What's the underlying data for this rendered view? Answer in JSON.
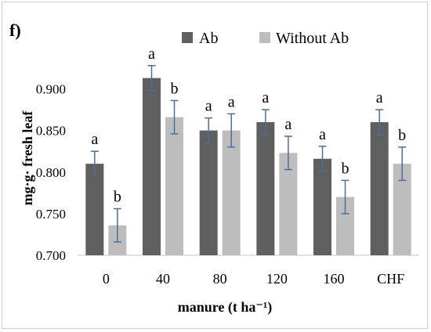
{
  "chart_data": {
    "type": "bar",
    "panel_label": "f)",
    "categories": [
      "0",
      "40",
      "80",
      "120",
      "160",
      "CHF"
    ],
    "series": [
      {
        "name": "Ab",
        "color": "#5f5f5f",
        "values": [
          0.81,
          0.913,
          0.85,
          0.86,
          0.816,
          0.86
        ],
        "errors": [
          0.015,
          0.015,
          0.015,
          0.015,
          0.015,
          0.015
        ],
        "letters": [
          "a",
          "a",
          "a",
          "a",
          "a",
          "a"
        ]
      },
      {
        "name": "Without Ab",
        "color": "#bdbdbd",
        "values": [
          0.736,
          0.866,
          0.85,
          0.823,
          0.77,
          0.81
        ],
        "errors": [
          0.02,
          0.02,
          0.02,
          0.02,
          0.02,
          0.02
        ],
        "letters": [
          "b",
          "b",
          "a",
          "a",
          "b",
          "b"
        ]
      }
    ],
    "xlabel": "manure (t ha⁻¹)",
    "ylabel": "mg·g· fresh leaf",
    "ylim": [
      0.7,
      0.9
    ],
    "yticks": [
      "0.700",
      "0.750",
      "0.800",
      "0.850",
      "0.900"
    ],
    "ytick_values": [
      0.7,
      0.75,
      0.8,
      0.85,
      0.9
    ],
    "legend_position": "top",
    "grid": false,
    "error_bar_color": "#4a6ea0"
  }
}
